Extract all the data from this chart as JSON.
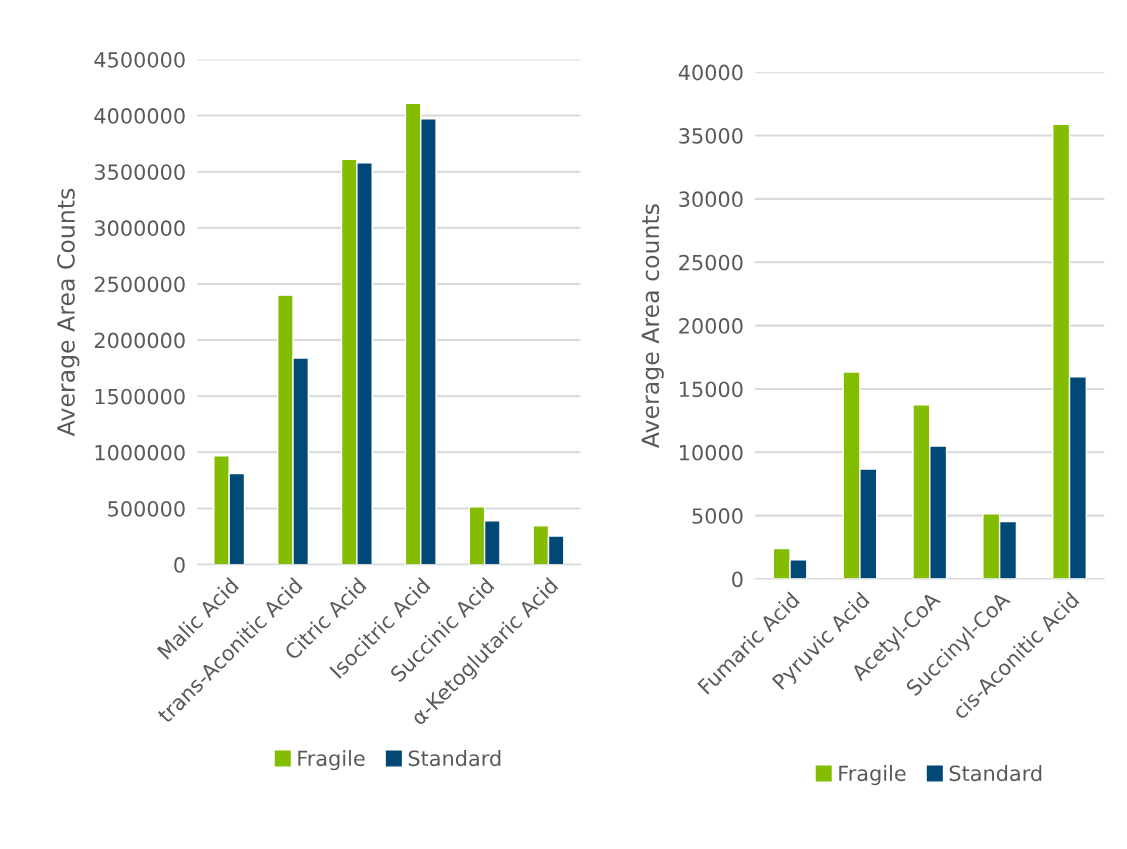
{
  "chart_data": [
    {
      "type": "bar",
      "ylabel": "Average Area Counts",
      "categories": [
        "Malic Acid",
        "trans-Aconitic Acid",
        "Citric Acid",
        "Isocitric Acid",
        "Succinic Acid",
        "α-Ketoglutaric Acid"
      ],
      "series": [
        {
          "name": "Fragile",
          "color": "#84bd00",
          "values": [
            970000,
            2400000,
            3610000,
            4110000,
            515000,
            345000
          ]
        },
        {
          "name": "Standard",
          "color": "#004876",
          "values": [
            810000,
            1840000,
            3580000,
            3970000,
            390000,
            255000
          ]
        }
      ],
      "ylim": [
        0,
        4500000
      ],
      "yticks": [
        0,
        500000,
        1000000,
        1500000,
        2000000,
        2500000,
        3000000,
        3500000,
        4000000,
        4500000
      ],
      "grid": "y",
      "legend": "bottom"
    },
    {
      "type": "bar",
      "ylabel": "Average Area counts",
      "categories": [
        "Fumaric Acid",
        "Pyruvic Acid",
        "Acetyl-CoA",
        "Succinyl-CoA",
        "cis-Aconitic Acid"
      ],
      "series": [
        {
          "name": "Fragile",
          "color": "#84bd00",
          "values": [
            2400,
            16330,
            13750,
            5140,
            35880
          ]
        },
        {
          "name": "Standard",
          "color": "#004876",
          "values": [
            1520,
            8680,
            10500,
            4530,
            15960
          ]
        }
      ],
      "ylim": [
        0,
        40000
      ],
      "yticks": [
        0,
        5000,
        10000,
        15000,
        20000,
        25000,
        30000,
        35000,
        40000
      ],
      "grid": "y",
      "legend": "bottom"
    }
  ]
}
